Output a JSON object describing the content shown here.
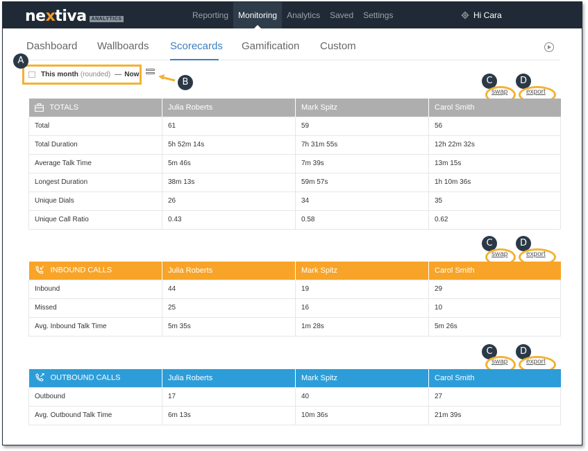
{
  "brand": {
    "logo_prefix": "ne",
    "logo_x": "x",
    "logo_suffix": "tiva",
    "badge": "ANALYTICS"
  },
  "nav": {
    "items": [
      "Reporting",
      "Monitoring",
      "Analytics",
      "Saved",
      "Settings"
    ],
    "active": "Monitoring"
  },
  "user": {
    "greeting": "Hi Cara"
  },
  "subtabs": {
    "items": [
      "Dashboard",
      "Wallboards",
      "Scorecards",
      "Gamification",
      "Custom"
    ],
    "active": "Scorecards"
  },
  "date_range": {
    "label": "This month",
    "qualifier": "(rounded)",
    "separator": "—",
    "end": "Now"
  },
  "callouts": {
    "a": "A",
    "b": "B",
    "c": "C",
    "d": "D"
  },
  "links": {
    "swap": "swap",
    "export": "export"
  },
  "agents": [
    "Julia Roberts",
    "Mark Spitz",
    "Carol Smith"
  ],
  "tables": {
    "totals": {
      "title": "TOTALS",
      "color": "#aeaeae",
      "rows": [
        [
          "Total",
          "61",
          "59",
          "56"
        ],
        [
          "Total Duration",
          "5h 52m 14s",
          "7h 31m 55s",
          "12h 22m 32s"
        ],
        [
          "Average Talk Time",
          "5m 46s",
          "7m 39s",
          "13m 15s"
        ],
        [
          "Longest Duration",
          "38m 13s",
          "59m 57s",
          "1h 10m 36s"
        ],
        [
          "Unique Dials",
          "26",
          "34",
          "35"
        ],
        [
          "Unique Call Ratio",
          "0.43",
          "0.58",
          "0.62"
        ]
      ]
    },
    "inbound": {
      "title": "INBOUND CALLS",
      "color": "#f7a428",
      "rows": [
        [
          "Inbound",
          "44",
          "19",
          "29"
        ],
        [
          "Missed",
          "25",
          "16",
          "10"
        ],
        [
          "Avg. Inbound Talk Time",
          "5m 35s",
          "1m 28s",
          "5m 26s"
        ]
      ]
    },
    "outbound": {
      "title": "OUTBOUND CALLS",
      "color": "#2c9dd8",
      "rows": [
        [
          "Outbound",
          "17",
          "40",
          "27"
        ],
        [
          "Avg. Outbound Talk Time",
          "6m 13s",
          "10m 36s",
          "21m 39s"
        ]
      ]
    }
  },
  "colors": {
    "nav_bg": "#1f2a36",
    "accent_highlight": "#f2b233",
    "tab_active": "#3a7fc0"
  }
}
